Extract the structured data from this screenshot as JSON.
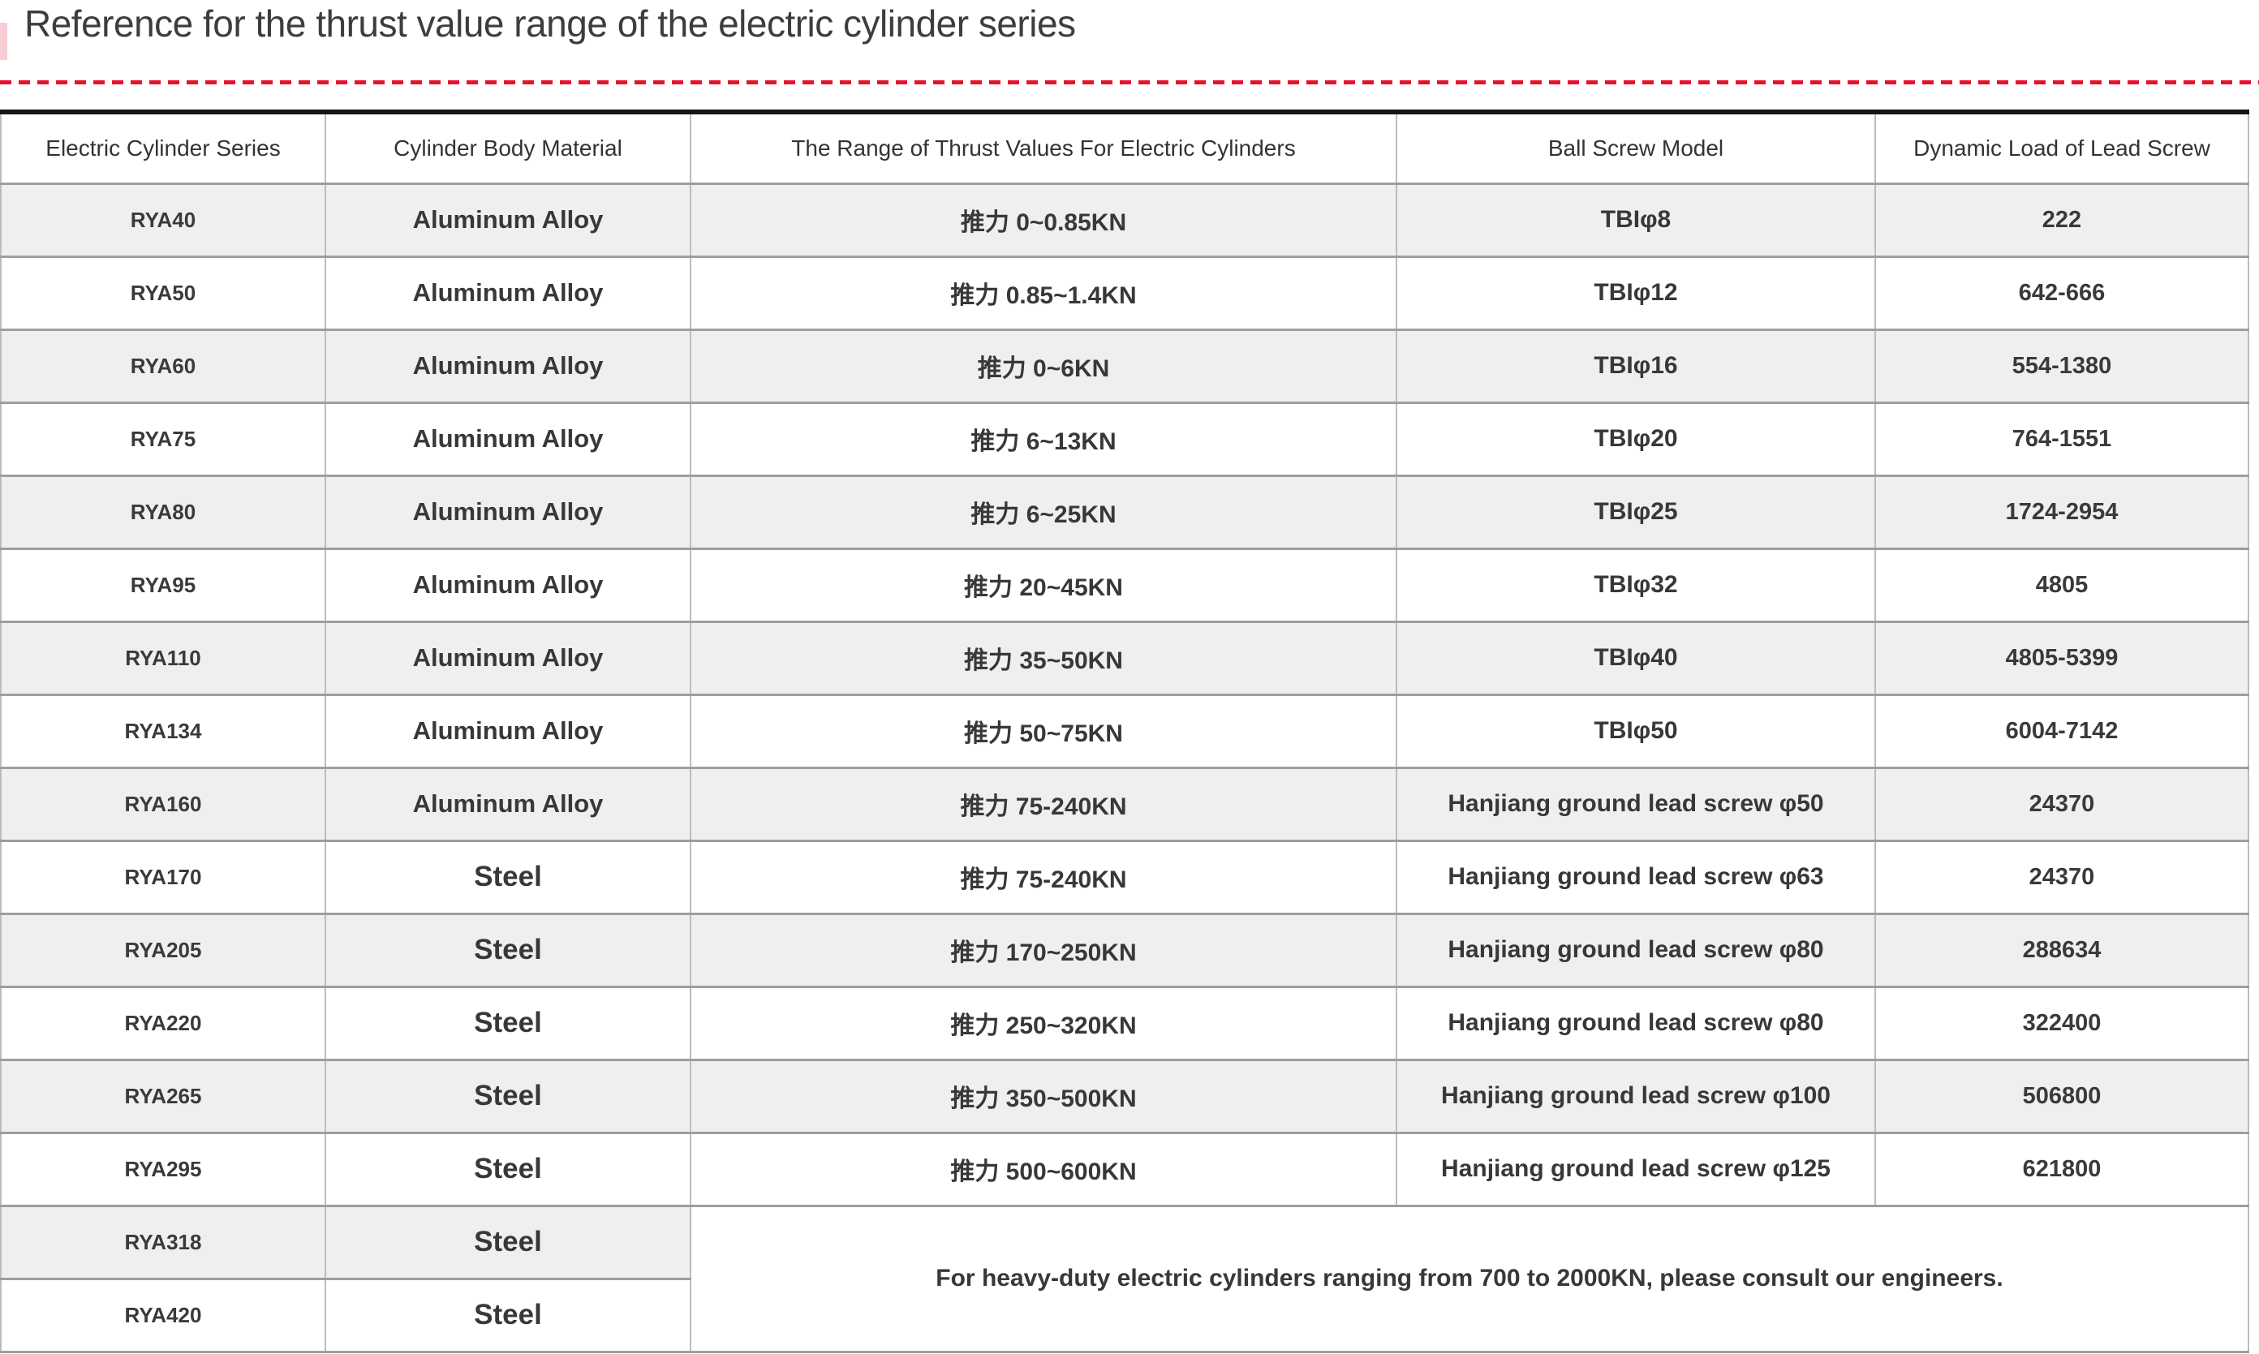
{
  "title": "Reference for the thrust value range of the electric cylinder series",
  "colors": {
    "accent_red": "#e8112d",
    "zebra_gray": "#efefef"
  },
  "table": {
    "columns": [
      "Electric Cylinder Series",
      "Cylinder Body Material",
      "The Range of Thrust Values For Electric Cylinders",
      "Ball Screw Model",
      "Dynamic Load of Lead Screw"
    ],
    "rows": [
      {
        "series": "RYA40",
        "material": "Aluminum Alloy",
        "thrust": "推力 0~0.85KN",
        "screw": "TBIφ8",
        "load": "222"
      },
      {
        "series": "RYA50",
        "material": "Aluminum Alloy",
        "thrust": "推力 0.85~1.4KN",
        "screw": "TBIφ12",
        "load": "642-666"
      },
      {
        "series": "RYA60",
        "material": "Aluminum Alloy",
        "thrust": "推力 0~6KN",
        "screw": "TBIφ16",
        "load": "554-1380"
      },
      {
        "series": "RYA75",
        "material": "Aluminum Alloy",
        "thrust": "推力 6~13KN",
        "screw": "TBIφ20",
        "load": "764-1551"
      },
      {
        "series": "RYA80",
        "material": "Aluminum Alloy",
        "thrust": "推力 6~25KN",
        "screw": "TBIφ25",
        "load": "1724-2954"
      },
      {
        "series": "RYA95",
        "material": "Aluminum Alloy",
        "thrust": "推力 20~45KN",
        "screw": "TBIφ32",
        "load": "4805"
      },
      {
        "series": "RYA110",
        "material": "Aluminum Alloy",
        "thrust": "推力 35~50KN",
        "screw": "TBIφ40",
        "load": "4805-5399"
      },
      {
        "series": "RYA134",
        "material": "Aluminum Alloy",
        "thrust": "推力 50~75KN",
        "screw": "TBIφ50",
        "load": "6004-7142"
      },
      {
        "series": "RYA160",
        "material": "Aluminum Alloy",
        "thrust": "推力 75-240KN",
        "screw": "Hanjiang ground lead screw φ50",
        "load": "24370"
      },
      {
        "series": "RYA170",
        "material": "Steel",
        "thrust": "推力 75-240KN",
        "screw": "Hanjiang ground lead screw φ63",
        "load": "24370"
      },
      {
        "series": "RYA205",
        "material": "Steel",
        "thrust": "推力 170~250KN",
        "screw": "Hanjiang ground lead screw φ80",
        "load": "288634"
      },
      {
        "series": "RYA220",
        "material": "Steel",
        "thrust": "推力 250~320KN",
        "screw": "Hanjiang ground lead screw φ80",
        "load": "322400"
      },
      {
        "series": "RYA265",
        "material": "Steel",
        "thrust": "推力 350~500KN",
        "screw": "Hanjiang ground lead screw φ100",
        "load": "506800"
      },
      {
        "series": "RYA295",
        "material": "Steel",
        "thrust": "推力 500~600KN",
        "screw": "Hanjiang ground lead screw φ125",
        "load": "621800"
      },
      {
        "series": "RYA318",
        "material": "Steel"
      },
      {
        "series": "RYA420",
        "material": "Steel"
      }
    ],
    "note": "For heavy-duty electric cylinders ranging from 700 to 2000KN, please consult our engineers."
  }
}
